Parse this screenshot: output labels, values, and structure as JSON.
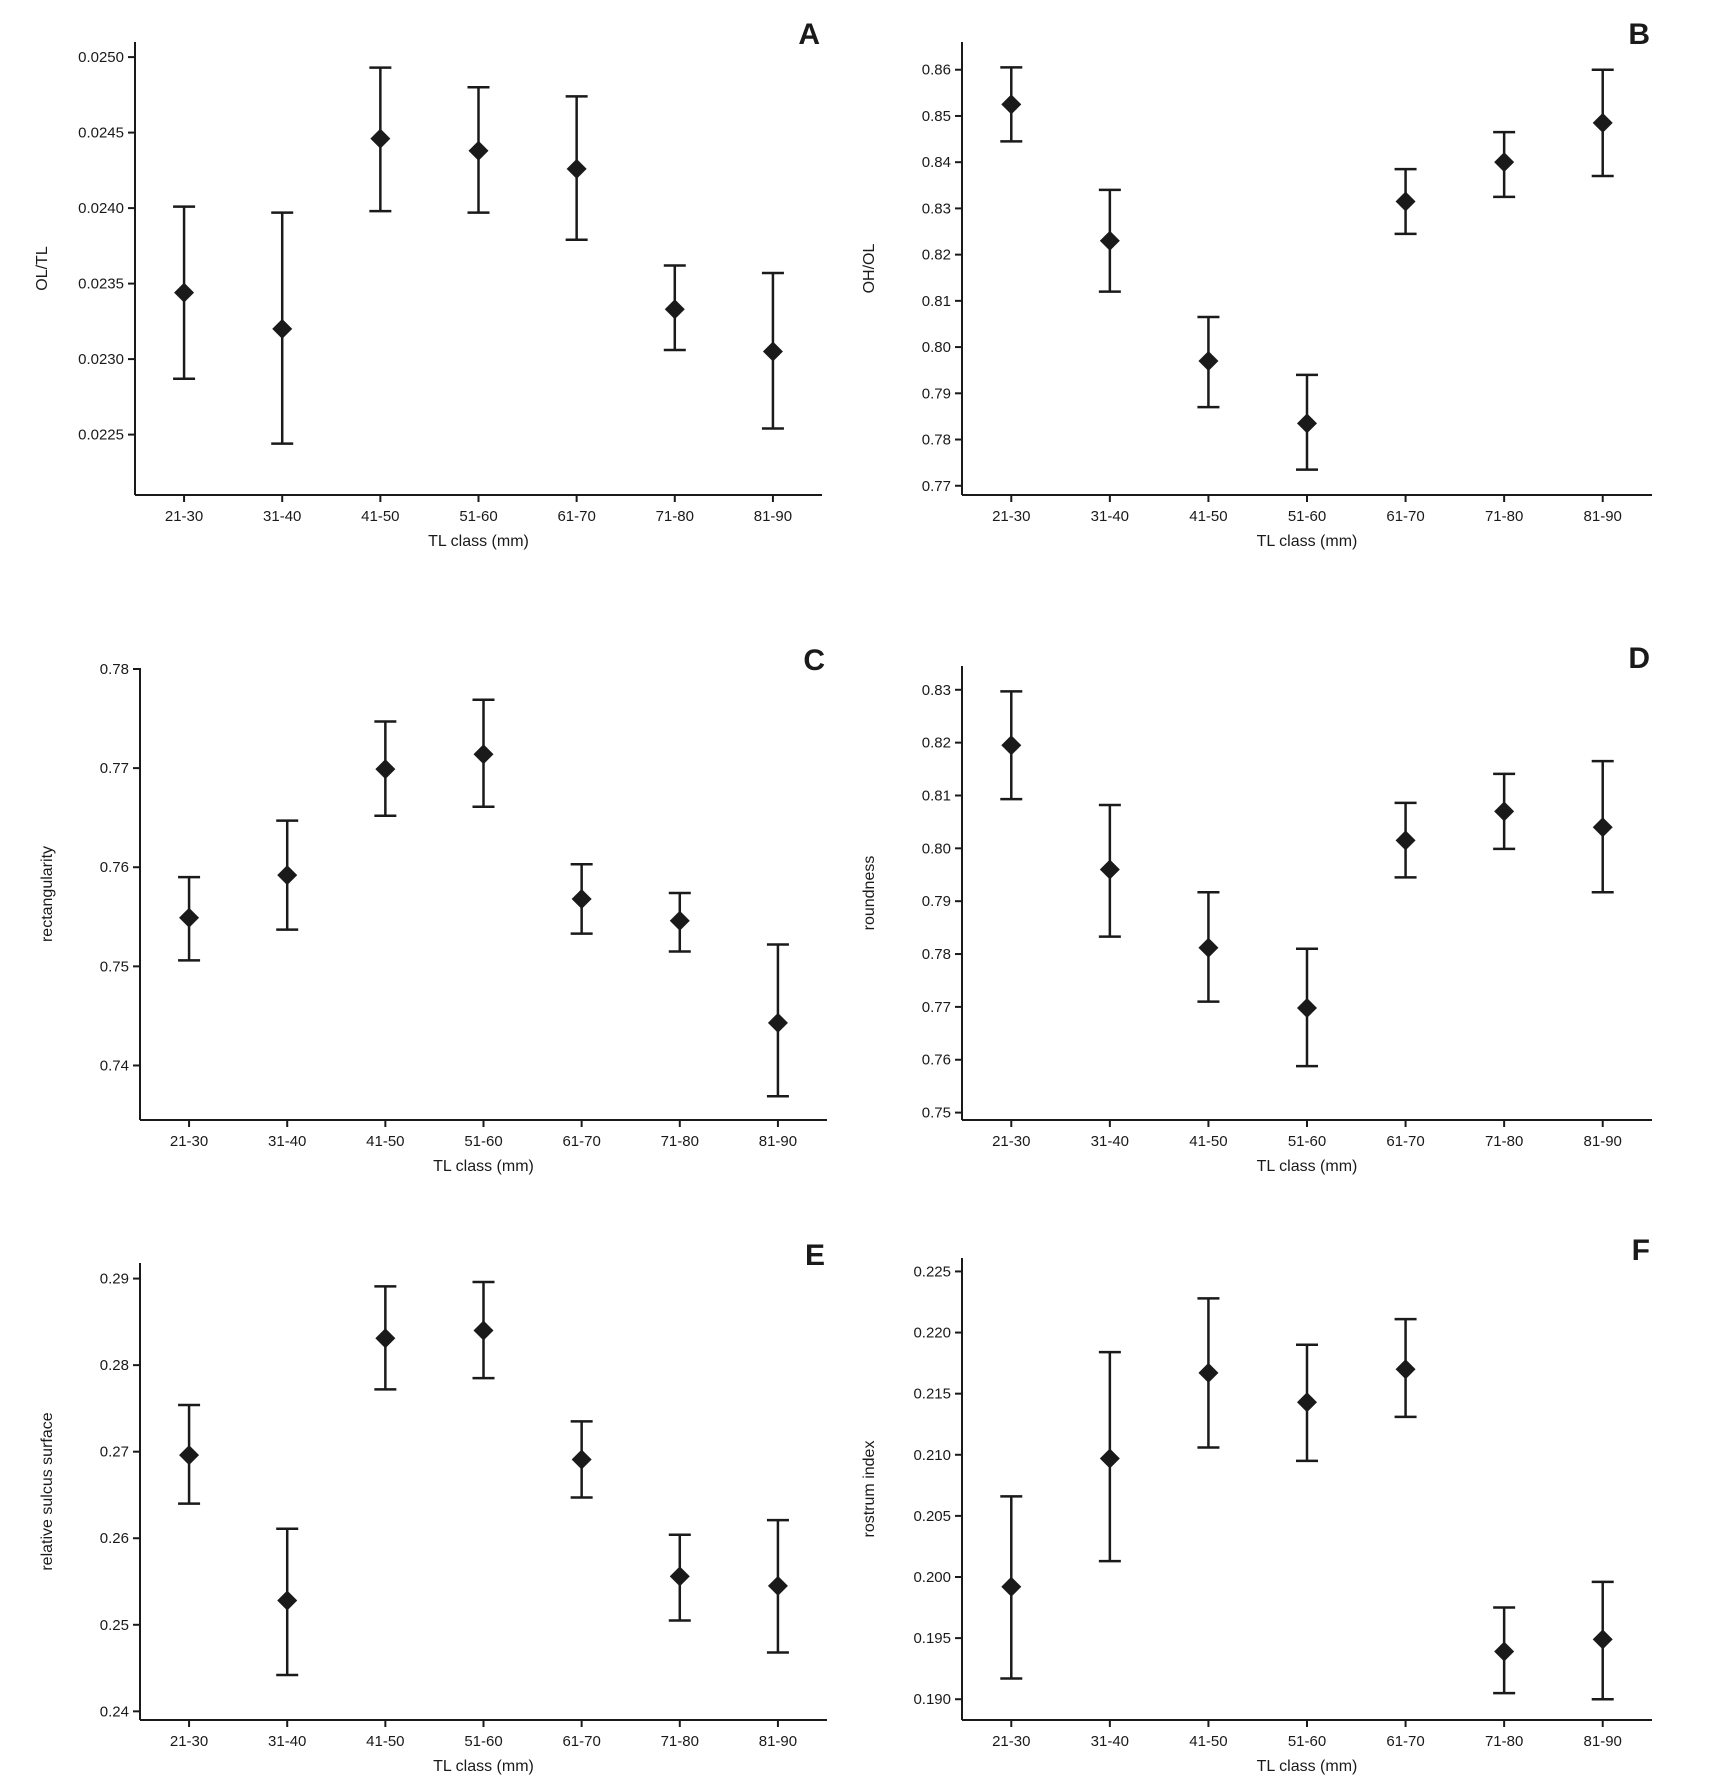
{
  "figure": {
    "background": "#ffffff",
    "ink": "#1a1a1a"
  },
  "chart_data": [
    {
      "type": "scatter",
      "style": "mean-with-error-bars",
      "panel": "A",
      "title": "",
      "xlabel": "TL class (mm)",
      "ylabel": "OL/TL",
      "categories": [
        "21-30",
        "31-40",
        "41-50",
        "51-60",
        "61-70",
        "71-80",
        "81-90"
      ],
      "ylim": [
        0.0221,
        0.0251
      ],
      "yticks": [
        0.0225,
        0.023,
        0.0235,
        0.024,
        0.0245,
        0.025
      ],
      "ytick_labels": [
        "0.0225",
        "0.0230",
        "0.0235",
        "0.0240",
        "0.0245",
        "0.0250"
      ],
      "values": [
        0.02344,
        0.0232,
        0.02446,
        0.02438,
        0.02426,
        0.02333,
        0.02305
      ],
      "lower": [
        0.02287,
        0.02244,
        0.02398,
        0.02397,
        0.02379,
        0.02306,
        0.02254
      ],
      "upper": [
        0.02401,
        0.02397,
        0.02493,
        0.0248,
        0.02474,
        0.02362,
        0.02357
      ],
      "grid": false,
      "legend": "none"
    },
    {
      "type": "scatter",
      "style": "mean-with-error-bars",
      "panel": "B",
      "title": "",
      "xlabel": "TL class (mm)",
      "ylabel": "OH/OL",
      "categories": [
        "21-30",
        "31-40",
        "41-50",
        "51-60",
        "61-70",
        "71-80",
        "81-90"
      ],
      "ylim": [
        0.768,
        0.866
      ],
      "yticks": [
        0.77,
        0.78,
        0.79,
        0.8,
        0.81,
        0.82,
        0.83,
        0.84,
        0.85,
        0.86
      ],
      "ytick_labels": [
        "0.77",
        "0.78",
        "0.79",
        "0.80",
        "0.81",
        "0.82",
        "0.83",
        "0.84",
        "0.85",
        "0.86"
      ],
      "values": [
        0.8525,
        0.823,
        0.797,
        0.7835,
        0.8315,
        0.84,
        0.8485
      ],
      "lower": [
        0.8445,
        0.812,
        0.787,
        0.7735,
        0.8245,
        0.8325,
        0.837
      ],
      "upper": [
        0.8605,
        0.834,
        0.8065,
        0.794,
        0.8385,
        0.8465,
        0.86
      ],
      "grid": false,
      "legend": "none"
    },
    {
      "type": "scatter",
      "style": "mean-with-error-bars",
      "panel": "C",
      "title": "",
      "xlabel": "TL class (mm)",
      "ylabel": "rectangularity",
      "categories": [
        "21-30",
        "31-40",
        "41-50",
        "51-60",
        "61-70",
        "71-80",
        "81-90"
      ],
      "ylim": [
        0.7345,
        0.7801
      ],
      "yticks": [
        0.74,
        0.75,
        0.76,
        0.77,
        0.78
      ],
      "ytick_labels": [
        "0.74",
        "0.75",
        "0.76",
        "0.77",
        "0.78"
      ],
      "values": [
        0.7549,
        0.7592,
        0.7699,
        0.7714,
        0.7568,
        0.7546,
        0.7443
      ],
      "lower": [
        0.7506,
        0.7537,
        0.7652,
        0.7661,
        0.7533,
        0.7515,
        0.7369
      ],
      "upper": [
        0.759,
        0.7647,
        0.7747,
        0.7769,
        0.7603,
        0.7574,
        0.7522
      ],
      "grid": false,
      "legend": "none"
    },
    {
      "type": "scatter",
      "style": "mean-with-error-bars",
      "panel": "D",
      "title": "",
      "xlabel": "TL class (mm)",
      "ylabel": "roundness",
      "categories": [
        "21-30",
        "31-40",
        "41-50",
        "51-60",
        "61-70",
        "71-80",
        "81-90"
      ],
      "ylim": [
        0.7486,
        0.8345
      ],
      "yticks": [
        0.75,
        0.76,
        0.77,
        0.78,
        0.79,
        0.8,
        0.81,
        0.82,
        0.83
      ],
      "ytick_labels": [
        "0.75",
        "0.76",
        "0.77",
        "0.78",
        "0.79",
        "0.80",
        "0.81",
        "0.82",
        "0.83"
      ],
      "values": [
        0.8195,
        0.796,
        0.7812,
        0.7698,
        0.8015,
        0.807,
        0.804
      ],
      "lower": [
        0.8093,
        0.7833,
        0.771,
        0.7588,
        0.7945,
        0.7999,
        0.7917
      ],
      "upper": [
        0.8297,
        0.8082,
        0.7917,
        0.781,
        0.8086,
        0.8141,
        0.8165
      ],
      "grid": false,
      "legend": "none"
    },
    {
      "type": "scatter",
      "style": "mean-with-error-bars",
      "panel": "E",
      "title": "",
      "xlabel": "TL class (mm)",
      "ylabel": "relative sulcus surface",
      "categories": [
        "21-30",
        "31-40",
        "41-50",
        "51-60",
        "61-70",
        "71-80",
        "81-90"
      ],
      "ylim": [
        0.239,
        0.2918
      ],
      "yticks": [
        0.24,
        0.25,
        0.26,
        0.27,
        0.28,
        0.29
      ],
      "ytick_labels": [
        "0.24",
        "0.25",
        "0.26",
        "0.27",
        "0.28",
        "0.29"
      ],
      "values": [
        0.2696,
        0.2528,
        0.2831,
        0.284,
        0.2691,
        0.2556,
        0.2545
      ],
      "lower": [
        0.264,
        0.2442,
        0.2772,
        0.2785,
        0.2647,
        0.2505,
        0.2468
      ],
      "upper": [
        0.2754,
        0.2611,
        0.2891,
        0.2896,
        0.2735,
        0.2604,
        0.2621
      ],
      "grid": false,
      "legend": "none"
    },
    {
      "type": "scatter",
      "style": "mean-with-error-bars",
      "panel": "F",
      "title": "",
      "xlabel": "TL class (mm)",
      "ylabel": "rostrum index",
      "categories": [
        "21-30",
        "31-40",
        "41-50",
        "51-60",
        "61-70",
        "71-80",
        "81-90"
      ],
      "ylim": [
        0.1883,
        0.2261
      ],
      "yticks": [
        0.19,
        0.195,
        0.2,
        0.205,
        0.21,
        0.215,
        0.22,
        0.225
      ],
      "ytick_labels": [
        "0.190",
        "0.195",
        "0.200",
        "0.205",
        "0.210",
        "0.215",
        "0.220",
        "0.225"
      ],
      "values": [
        0.1992,
        0.2097,
        0.2167,
        0.2143,
        0.217,
        0.1939,
        0.1949
      ],
      "lower": [
        0.1917,
        0.2013,
        0.2106,
        0.2095,
        0.2131,
        0.1905,
        0.19
      ],
      "upper": [
        0.2066,
        0.2184,
        0.2228,
        0.219,
        0.2211,
        0.1975,
        0.1996
      ],
      "grid": false,
      "legend": "none"
    }
  ]
}
